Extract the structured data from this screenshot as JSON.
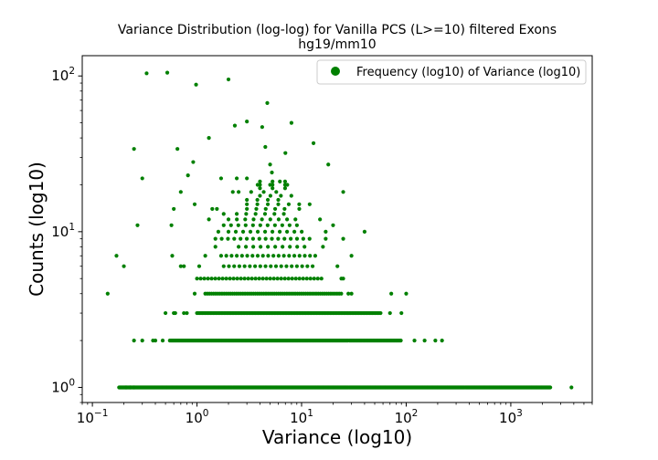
{
  "chart_data": {
    "type": "scatter",
    "title": "Variance Distribution (log-log) for Vanilla PCS (L>=10) filtered Exons",
    "subtitle": "hg19/mm10",
    "xlabel": "Variance (log10)",
    "ylabel": "Counts (log10)",
    "xscale": "log",
    "yscale": "log",
    "xlim": [
      0.08,
      6000
    ],
    "ylim": [
      0.8,
      135
    ],
    "x_ticks": [
      {
        "value": 0.1,
        "base": "10",
        "exp": "−1"
      },
      {
        "value": 1,
        "base": "10",
        "exp": "0"
      },
      {
        "value": 10,
        "base": "10",
        "exp": "1"
      },
      {
        "value": 100,
        "base": "10",
        "exp": "2"
      },
      {
        "value": 1000,
        "base": "10",
        "exp": "3"
      }
    ],
    "y_ticks": [
      {
        "value": 1,
        "base": "10",
        "exp": "0"
      },
      {
        "value": 10,
        "base": "10",
        "exp": "1"
      },
      {
        "value": 100,
        "base": "10",
        "exp": "2"
      }
    ],
    "grid": false,
    "legend": {
      "position": "top-right"
    },
    "series": [
      {
        "name": "Frequency (log10) of Variance (log10)",
        "color": "#008000",
        "marker": "circle",
        "bands": [
          {
            "y": 1,
            "x_range": [
              0.18,
              2400
            ],
            "step": 0.006,
            "extra_x": [
              0.21,
              0.23,
              0.25,
              3800
            ]
          },
          {
            "y": 2,
            "x_range": [
              0.55,
              90
            ],
            "step": 0.012,
            "extra_x": [
              0.25,
              0.3,
              0.38,
              0.4,
              0.47,
              120,
              150,
              190,
              220
            ]
          },
          {
            "y": 3,
            "x_range": [
              1.0,
              58
            ],
            "step": 0.013,
            "extra_x": [
              0.5,
              0.6,
              0.62,
              0.75,
              0.8,
              70,
              90
            ]
          },
          {
            "y": 4,
            "x_range": [
              1.2,
              25
            ],
            "step": 0.02,
            "extra_x": [
              0.14,
              0.95,
              28,
              30,
              72,
              100
            ]
          },
          {
            "y": 5,
            "x_range": [
              1.0,
              16
            ],
            "step": 0.035,
            "extra_x": [
              24,
              25
            ]
          },
          {
            "y": 6,
            "x_range": [
              1.8,
              13
            ],
            "step": 0.05,
            "extra_x": [
              0.2,
              0.7,
              0.75,
              1.05,
              22
            ]
          },
          {
            "y": 7,
            "x_range": [
              1.7,
              14
            ],
            "step": 0.05,
            "extra_x": [
              0.17,
              0.58,
              1.2,
              30
            ]
          },
          {
            "y": 8,
            "x_range": [
              2.5,
              12
            ],
            "step": 0.07,
            "extra_x": [
              1.5,
              16
            ]
          },
          {
            "y": 9,
            "x_range": [
              1.5,
              12
            ],
            "step": 0.06,
            "extra_x": [
              17,
              25
            ]
          },
          {
            "y": 10,
            "x_range": [
              2.0,
              11
            ],
            "step": 0.07,
            "extra_x": [
              1.6,
              17,
              40
            ]
          },
          {
            "y": 11,
            "x_range": [
              1.8,
              10
            ],
            "step": 0.07,
            "extra_x": [
              0.27,
              0.57,
              20
            ]
          },
          {
            "y": 12,
            "x_range": [
              2.0,
              10
            ],
            "step": 0.08,
            "extra_x": [
              1.3,
              15
            ]
          },
          {
            "y": 13,
            "x_range": [
              2.4,
              7
            ],
            "step": 0.09,
            "extra_x": [
              1.8
            ]
          },
          {
            "y": 14,
            "x_range": [
              3.0,
              8
            ],
            "step": 0.09,
            "extra_x": [
              0.6,
              1.4,
              1.55,
              9.5
            ]
          },
          {
            "y": 15,
            "x_range": [
              3.0,
              12
            ],
            "step": 0.1,
            "extra_x": [
              0.95
            ]
          },
          {
            "y": 16,
            "x_range": [
              3.0,
              7
            ],
            "step": 0.1,
            "extra_x": []
          },
          {
            "y": 17,
            "x_range": [
              4.0,
              8
            ],
            "step": 0.1,
            "extra_x": []
          },
          {
            "y": 18,
            "x_range": [
              2.5,
              7
            ],
            "step": 0.12,
            "extra_x": [
              0.7,
              2.2,
              25
            ]
          },
          {
            "y": 19,
            "x_range": [
              4.0,
              9
            ],
            "step": 0.12,
            "extra_x": []
          },
          {
            "y": 20,
            "x_range": [
              4.0,
              8
            ],
            "step": 0.12,
            "extra_x": []
          },
          {
            "y": 21,
            "x_range": [
              4.0,
              7
            ],
            "step": 0.12,
            "extra_x": []
          }
        ],
        "sparse_points": [
          [
            0.33,
            104
          ],
          [
            0.52,
            105
          ],
          [
            0.98,
            88
          ],
          [
            2.0,
            95
          ],
          [
            4.7,
            67
          ],
          [
            2.3,
            48
          ],
          [
            3.0,
            51
          ],
          [
            4.2,
            47
          ],
          [
            8.0,
            50
          ],
          [
            1.3,
            40
          ],
          [
            0.25,
            34
          ],
          [
            0.65,
            34
          ],
          [
            4.5,
            35
          ],
          [
            7.0,
            32
          ],
          [
            13,
            37
          ],
          [
            0.92,
            28
          ],
          [
            5.0,
            27
          ],
          [
            18,
            27
          ],
          [
            0.82,
            23
          ],
          [
            5.2,
            24
          ],
          [
            0.3,
            22
          ],
          [
            1.7,
            22
          ],
          [
            2.4,
            22
          ],
          [
            3.0,
            22
          ],
          [
            6.2,
            21
          ],
          [
            3.8,
            20
          ],
          [
            5.0,
            20
          ],
          [
            7.3,
            20
          ]
        ]
      }
    ]
  }
}
